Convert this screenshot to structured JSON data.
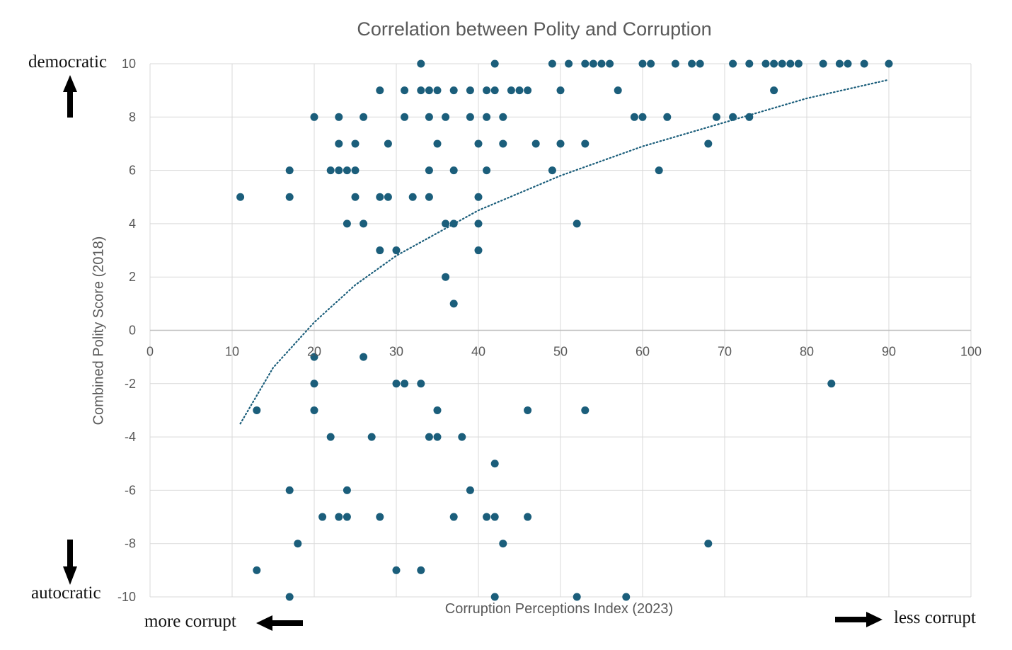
{
  "chart_data": {
    "type": "scatter",
    "title": "Correlation between Polity and Corruption",
    "xlabel": "Corruption Perceptions Index (2023)",
    "ylabel": "Combined Polity Score (2018)",
    "xlim": [
      0,
      100
    ],
    "ylim": [
      -10,
      10
    ],
    "x_ticks": [
      0,
      10,
      20,
      30,
      40,
      50,
      60,
      70,
      80,
      90,
      100
    ],
    "y_ticks": [
      10,
      8,
      6,
      4,
      2,
      0,
      -2,
      -4,
      -6,
      -8,
      -10
    ],
    "grid": true,
    "marker_color": "#1b5e7b",
    "trendline": {
      "type": "logarithmic",
      "style": "dotted",
      "color": "#1b5e7b",
      "x_range": [
        11,
        90
      ],
      "points": [
        [
          11,
          -3.5
        ],
        [
          15,
          -1.4
        ],
        [
          20,
          0.3
        ],
        [
          25,
          1.7
        ],
        [
          30,
          2.8
        ],
        [
          40,
          4.5
        ],
        [
          50,
          5.8
        ],
        [
          60,
          6.9
        ],
        [
          70,
          7.8
        ],
        [
          80,
          8.7
        ],
        [
          90,
          9.4
        ]
      ]
    },
    "series": [
      {
        "name": "Countries",
        "points": [
          [
            33,
            10
          ],
          [
            42,
            10
          ],
          [
            49,
            10
          ],
          [
            51,
            10
          ],
          [
            53,
            10
          ],
          [
            54,
            10
          ],
          [
            55,
            10
          ],
          [
            56,
            10
          ],
          [
            60,
            10
          ],
          [
            61,
            10
          ],
          [
            64,
            10
          ],
          [
            66,
            10
          ],
          [
            67,
            10
          ],
          [
            71,
            10
          ],
          [
            73,
            10
          ],
          [
            75,
            10
          ],
          [
            76,
            10
          ],
          [
            77,
            10
          ],
          [
            78,
            10
          ],
          [
            79,
            10
          ],
          [
            82,
            10
          ],
          [
            84,
            10
          ],
          [
            85,
            10
          ],
          [
            87,
            10
          ],
          [
            90,
            10
          ],
          [
            28,
            9
          ],
          [
            31,
            9
          ],
          [
            33,
            9
          ],
          [
            34,
            9
          ],
          [
            35,
            9
          ],
          [
            37,
            9
          ],
          [
            39,
            9
          ],
          [
            41,
            9
          ],
          [
            42,
            9
          ],
          [
            44,
            9
          ],
          [
            45,
            9
          ],
          [
            46,
            9
          ],
          [
            50,
            9
          ],
          [
            57,
            9
          ],
          [
            76,
            9
          ],
          [
            20,
            8
          ],
          [
            23,
            8
          ],
          [
            26,
            8
          ],
          [
            31,
            8
          ],
          [
            34,
            8
          ],
          [
            36,
            8
          ],
          [
            39,
            8
          ],
          [
            41,
            8
          ],
          [
            43,
            8
          ],
          [
            59,
            8
          ],
          [
            60,
            8
          ],
          [
            63,
            8
          ],
          [
            69,
            8
          ],
          [
            71,
            8
          ],
          [
            73,
            8
          ],
          [
            23,
            7
          ],
          [
            25,
            7
          ],
          [
            29,
            7
          ],
          [
            35,
            7
          ],
          [
            40,
            7
          ],
          [
            43,
            7
          ],
          [
            47,
            7
          ],
          [
            50,
            7
          ],
          [
            53,
            7
          ],
          [
            68,
            7
          ],
          [
            17,
            6
          ],
          [
            22,
            6
          ],
          [
            23,
            6
          ],
          [
            24,
            6
          ],
          [
            25,
            6
          ],
          [
            34,
            6
          ],
          [
            37,
            6
          ],
          [
            41,
            6
          ],
          [
            49,
            6
          ],
          [
            62,
            6
          ],
          [
            11,
            5
          ],
          [
            17,
            5
          ],
          [
            25,
            5
          ],
          [
            28,
            5
          ],
          [
            29,
            5
          ],
          [
            32,
            5
          ],
          [
            34,
            5
          ],
          [
            40,
            5
          ],
          [
            24,
            4
          ],
          [
            26,
            4
          ],
          [
            36,
            4
          ],
          [
            37,
            4
          ],
          [
            40,
            4
          ],
          [
            52,
            4
          ],
          [
            28,
            3
          ],
          [
            30,
            3
          ],
          [
            40,
            3
          ],
          [
            36,
            2
          ],
          [
            37,
            1
          ],
          [
            20,
            -1
          ],
          [
            26,
            -1
          ],
          [
            20,
            -2
          ],
          [
            30,
            -2
          ],
          [
            31,
            -2
          ],
          [
            33,
            -2
          ],
          [
            83,
            -2
          ],
          [
            13,
            -3
          ],
          [
            20,
            -3
          ],
          [
            35,
            -3
          ],
          [
            46,
            -3
          ],
          [
            53,
            -3
          ],
          [
            22,
            -4
          ],
          [
            27,
            -4
          ],
          [
            34,
            -4
          ],
          [
            35,
            -4
          ],
          [
            38,
            -4
          ],
          [
            42,
            -5
          ],
          [
            17,
            -6
          ],
          [
            24,
            -6
          ],
          [
            39,
            -6
          ],
          [
            21,
            -7
          ],
          [
            23,
            -7
          ],
          [
            24,
            -7
          ],
          [
            28,
            -7
          ],
          [
            37,
            -7
          ],
          [
            41,
            -7
          ],
          [
            42,
            -7
          ],
          [
            46,
            -7
          ],
          [
            18,
            -8
          ],
          [
            43,
            -8
          ],
          [
            68,
            -8
          ],
          [
            13,
            -9
          ],
          [
            30,
            -9
          ],
          [
            33,
            -9
          ],
          [
            17,
            -10
          ],
          [
            42,
            -10
          ],
          [
            52,
            -10
          ],
          [
            58,
            -10
          ]
        ]
      }
    ]
  },
  "annotations": {
    "democratic": "democratic",
    "autocratic": "autocratic",
    "more_corrupt": "more corrupt",
    "less_corrupt": "less corrupt"
  },
  "colors": {
    "marker": "#1b5e7b",
    "grid": "#d9d9d9",
    "axis_text": "#595959",
    "arrow": "#000000"
  }
}
